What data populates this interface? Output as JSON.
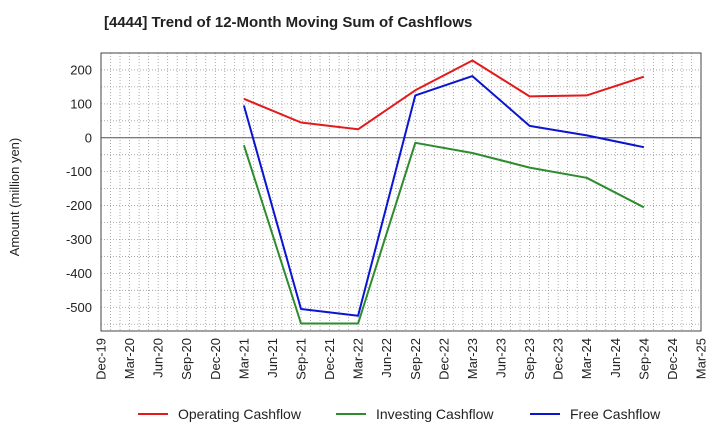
{
  "chart_data": {
    "type": "line",
    "title": "[4444]  Trend of 12-Month Moving Sum of Cashflows",
    "xlabel": "",
    "ylabel": "Amount (million yen)",
    "ylim": [
      -570,
      250
    ],
    "yticks": [
      200,
      100,
      0,
      -100,
      -200,
      -300,
      -400,
      -500
    ],
    "categories": [
      "Dec-19",
      "Mar-20",
      "Jun-20",
      "Sep-20",
      "Dec-20",
      "Mar-21",
      "Jun-21",
      "Sep-21",
      "Dec-21",
      "Mar-22",
      "Jun-22",
      "Sep-22",
      "Dec-22",
      "Mar-23",
      "Jun-23",
      "Sep-23",
      "Dec-23",
      "Mar-24",
      "Jun-24",
      "Sep-24",
      "Dec-24",
      "Mar-25"
    ],
    "grid": true,
    "legend_position": "bottom",
    "series": [
      {
        "name": "Operating Cashflow",
        "color": "#e31a1c",
        "values": [
          null,
          null,
          null,
          null,
          null,
          115,
          null,
          45,
          null,
          25,
          null,
          140,
          null,
          228,
          null,
          122,
          null,
          125,
          null,
          180,
          null,
          null
        ]
      },
      {
        "name": "Investing Cashflow",
        "color": "#2e8b2e",
        "values": [
          null,
          null,
          null,
          null,
          null,
          -22,
          null,
          -548,
          null,
          -548,
          null,
          -15,
          null,
          -45,
          null,
          -88,
          null,
          -118,
          null,
          -205,
          null,
          null
        ]
      },
      {
        "name": "Free Cashflow",
        "color": "#0a14d2",
        "values": [
          null,
          null,
          null,
          null,
          null,
          95,
          null,
          -505,
          null,
          -525,
          null,
          125,
          null,
          182,
          null,
          35,
          null,
          7,
          null,
          -28,
          null,
          null
        ]
      }
    ]
  }
}
